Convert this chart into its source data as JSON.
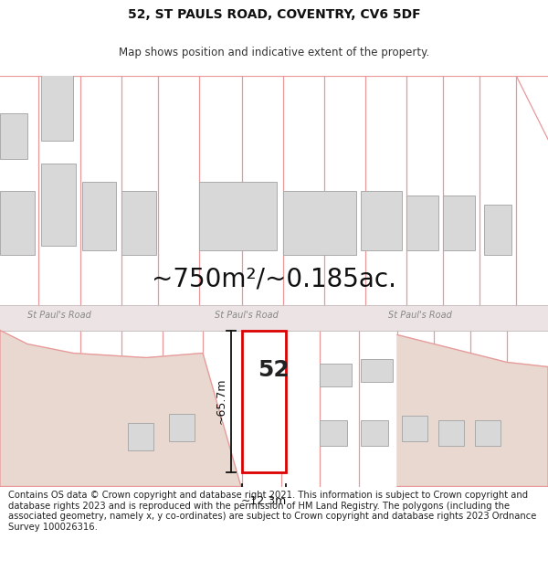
{
  "title_line1": "52, ST PAULS ROAD, COVENTRY, CV6 5DF",
  "title_line2": "Map shows position and indicative extent of the property.",
  "area_text": "~750m²/~0.185ac.",
  "dim_width": "~12.3m",
  "dim_height": "~65.7m",
  "label_number": "52",
  "road_label": "St Paul's Road",
  "footer_text": "Contains OS data © Crown copyright and database right 2021. This information is subject to Crown copyright and database rights 2023 and is reproduced with the permission of HM Land Registry. The polygons (including the associated geometry, namely x, y co-ordinates) are subject to Crown copyright and database rights 2023 Ordnance Survey 100026316.",
  "bg_color": "#ffffff",
  "map_bg": "#ffffff",
  "plot_line_color": "#e89898",
  "highlight_color": "#dd0000",
  "building_fill": "#d8d8d8",
  "building_edge": "#aaaaaa",
  "road_fill": "#ece4e4",
  "junction_fill": "#e8d8d0",
  "title_fontsize": 10,
  "subtitle_fontsize": 8.5,
  "area_fontsize": 20,
  "footer_fontsize": 7.2,
  "road_label_fontsize": 7
}
